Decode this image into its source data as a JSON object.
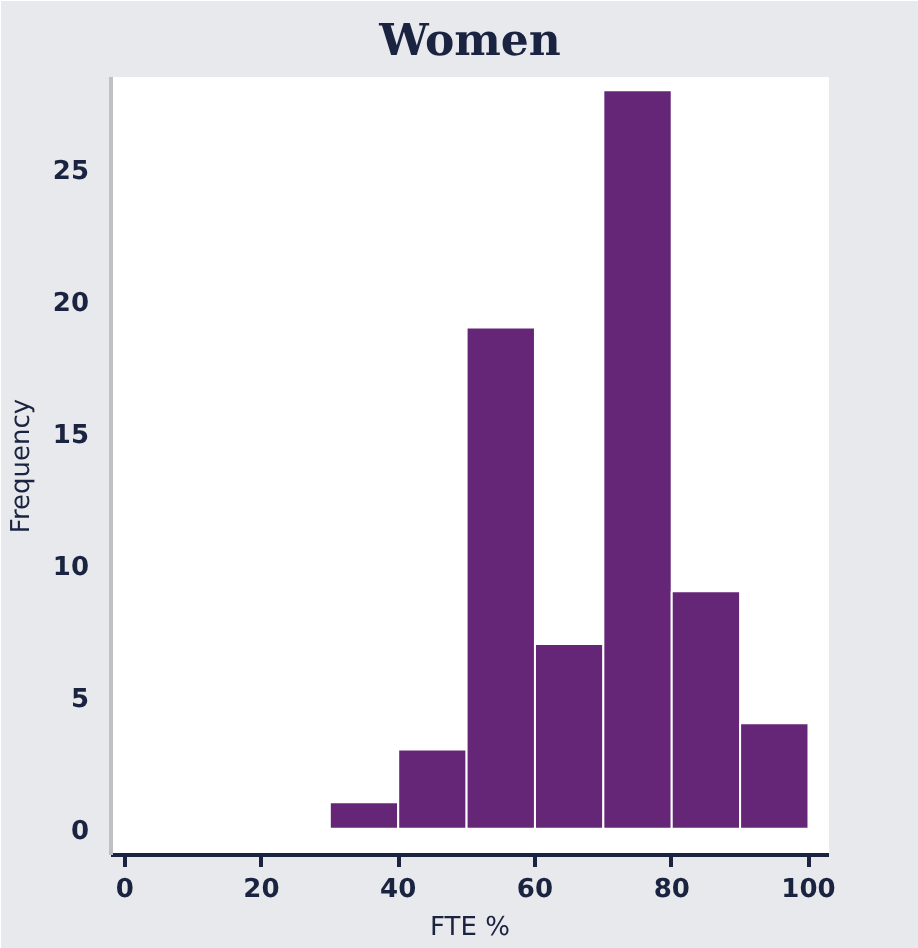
{
  "chart_data": {
    "type": "histogram",
    "title": "Women",
    "xlabel": "FTE %",
    "ylabel": "Frequency",
    "bins": [
      30,
      40,
      50,
      60,
      70,
      80,
      90,
      100
    ],
    "values": [
      1,
      3,
      19,
      7,
      28,
      9,
      4
    ],
    "color": "#662678",
    "xlim": [
      -2,
      103
    ],
    "xticks": [
      0,
      20,
      40,
      60,
      80,
      100
    ],
    "ylim": [
      -1,
      28.5
    ],
    "yticks": [
      0,
      5,
      10,
      15,
      20,
      25
    ],
    "grid": false
  }
}
